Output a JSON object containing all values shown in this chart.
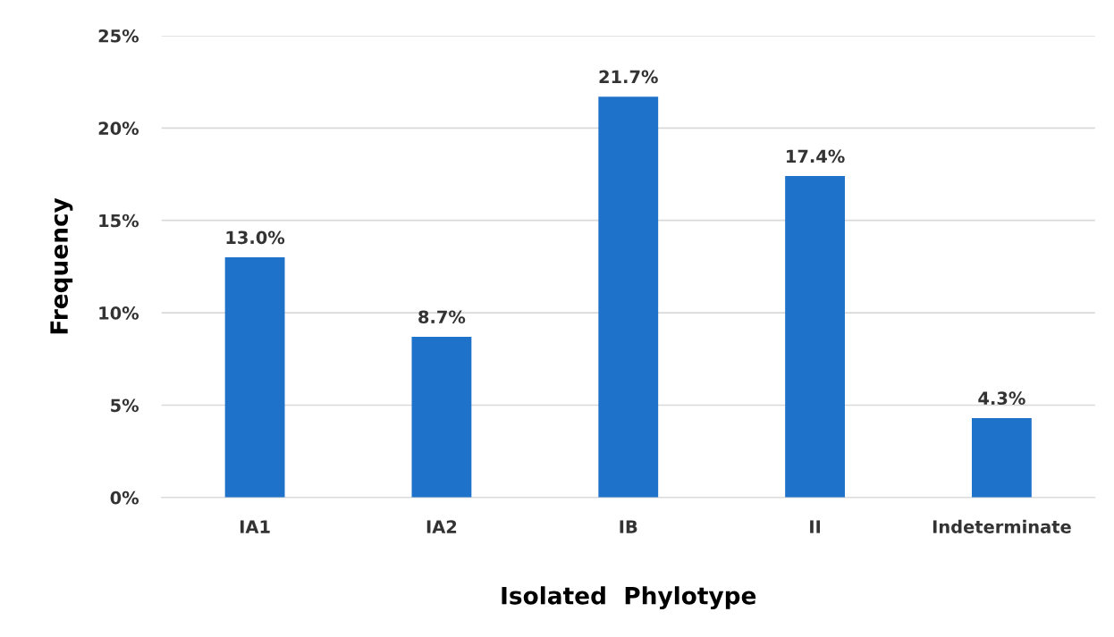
{
  "chart_data": {
    "type": "bar",
    "xlabel": "Isolated  Phylotype",
    "ylabel": "Frequency",
    "categories": [
      "IA1",
      "IA2",
      "IB",
      "II",
      "Indeterminate"
    ],
    "values": [
      13.0,
      8.7,
      21.7,
      17.4,
      4.3
    ],
    "value_labels": [
      "13.0%",
      "8.7%",
      "21.7%",
      "17.4%",
      "4.3%"
    ],
    "color": "#1f72c9",
    "ylim": [
      0,
      25
    ],
    "yticks": [
      {
        "value": 0,
        "label": "0%"
      },
      {
        "value": 5,
        "label": "5%"
      },
      {
        "value": 10,
        "label": "10%"
      },
      {
        "value": 15,
        "label": "15%"
      },
      {
        "value": 20,
        "label": "20%"
      },
      {
        "value": 25,
        "label": "25%"
      }
    ],
    "grid": "y",
    "legend": false
  }
}
